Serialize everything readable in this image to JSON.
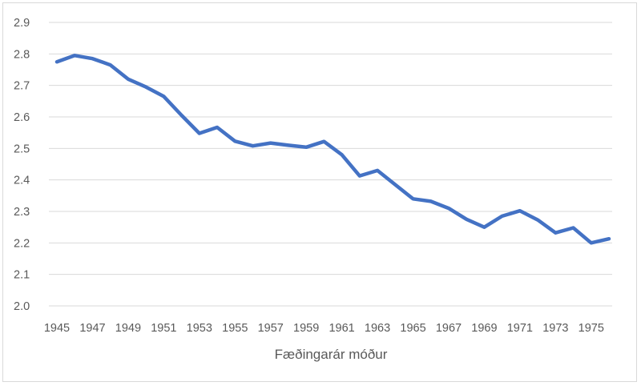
{
  "chart_data": {
    "type": "line",
    "title": "",
    "xlabel": "Fæðingarár móður",
    "ylabel": "",
    "ylim": [
      2.0,
      2.9
    ],
    "yticks": [
      "2.0",
      "2.1",
      "2.2",
      "2.3",
      "2.4",
      "2.5",
      "2.6",
      "2.7",
      "2.8",
      "2.9"
    ],
    "xtick_labels": [
      "1945",
      "1947",
      "1949",
      "1951",
      "1953",
      "1955",
      "1957",
      "1959",
      "1961",
      "1963",
      "1965",
      "1967",
      "1969",
      "1971",
      "1973",
      "1975"
    ],
    "grid": true,
    "legend": null,
    "x": [
      1945,
      1946,
      1947,
      1948,
      1949,
      1950,
      1951,
      1952,
      1953,
      1954,
      1955,
      1956,
      1957,
      1958,
      1959,
      1960,
      1961,
      1962,
      1963,
      1964,
      1965,
      1966,
      1967,
      1968,
      1969,
      1970,
      1971,
      1972,
      1973,
      1974,
      1975,
      1976
    ],
    "series": [
      {
        "name": "",
        "color": "#4472c4",
        "values": [
          2.775,
          2.795,
          2.785,
          2.765,
          2.72,
          2.695,
          2.665,
          2.605,
          2.548,
          2.567,
          2.523,
          2.508,
          2.517,
          2.51,
          2.504,
          2.522,
          2.48,
          2.413,
          2.43,
          2.385,
          2.34,
          2.332,
          2.31,
          2.275,
          2.25,
          2.285,
          2.302,
          2.273,
          2.232,
          2.248,
          2.2,
          2.213
        ]
      }
    ]
  },
  "colors": {
    "line": "#4472c4",
    "grid": "#d9d9d9",
    "text": "#595959"
  }
}
